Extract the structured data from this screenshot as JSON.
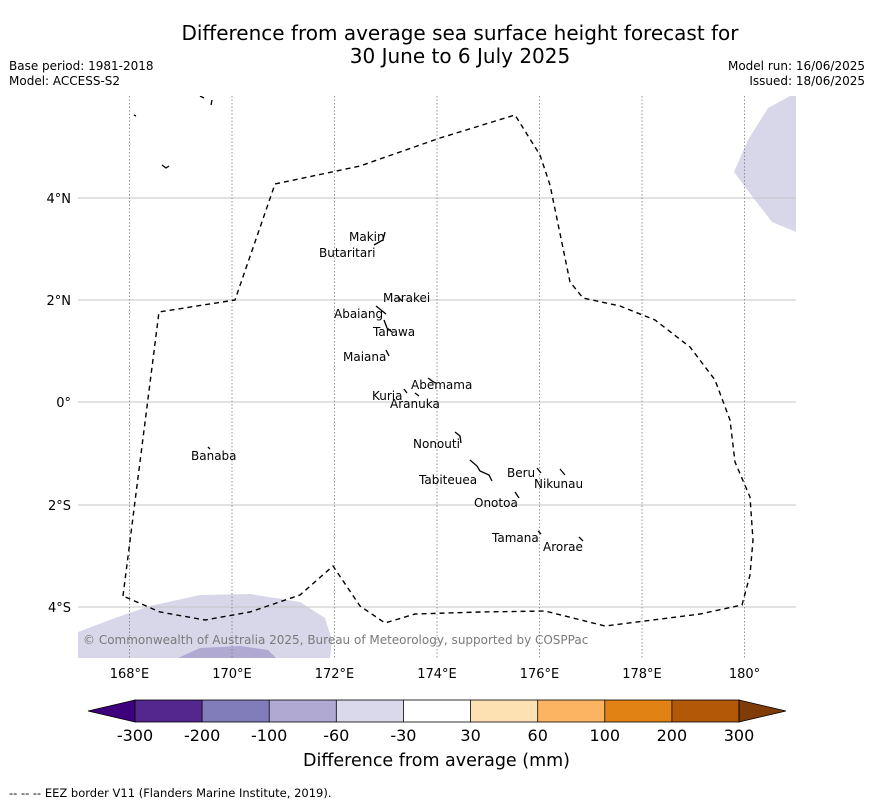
{
  "title": {
    "line1": "Difference from average sea surface height forecast for",
    "line2": "30 June to 6 July 2025"
  },
  "meta": {
    "base_period": "Base period: 1981-2018",
    "model": "Model: ACCESS-S2",
    "model_run": "Model run: 16/06/2025",
    "issued": "Issued: 18/06/2025"
  },
  "map": {
    "lon_labels": [
      "168°E",
      "170°E",
      "172°E",
      "174°E",
      "176°E",
      "178°E",
      "180°"
    ],
    "lat_labels": [
      "4°N",
      "2°N",
      "0°",
      "2°S",
      "4°S"
    ],
    "copyright": "© Commonwealth of Australia 2025, Bureau of Meteorology, supported by COSPPac",
    "places": [
      {
        "name": "Makin",
        "lon": 172.9,
        "lat": 3.2
      },
      {
        "name": "Butaritari",
        "lon": 172.8,
        "lat": 3.05
      },
      {
        "name": "Marakei",
        "lon": 173.3,
        "lat": 2.0
      },
      {
        "name": "Abaiang",
        "lon": 172.9,
        "lat": 1.8
      },
      {
        "name": "Tarawa",
        "lon": 173.0,
        "lat": 1.4
      },
      {
        "name": "Maiana",
        "lon": 173.0,
        "lat": 0.95
      },
      {
        "name": "Abemama",
        "lon": 173.85,
        "lat": 0.4
      },
      {
        "name": "Kuria",
        "lon": 173.4,
        "lat": 0.22
      },
      {
        "name": "Aranuka",
        "lon": 173.6,
        "lat": 0.16
      },
      {
        "name": "Nonouti",
        "lon": 174.45,
        "lat": -0.65
      },
      {
        "name": "Banaba",
        "lon": 169.53,
        "lat": -0.87
      },
      {
        "name": "Beru",
        "lon": 176.0,
        "lat": -1.33
      },
      {
        "name": "Nikunau",
        "lon": 176.45,
        "lat": -1.36
      },
      {
        "name": "Tabiteuea",
        "lon": 174.8,
        "lat": -1.3
      },
      {
        "name": "Onotoa",
        "lon": 175.55,
        "lat": -1.85
      },
      {
        "name": "Tamana",
        "lon": 175.97,
        "lat": -2.5
      },
      {
        "name": "Arorae",
        "lon": 176.82,
        "lat": -2.65
      }
    ]
  },
  "colorbar": {
    "label": "Difference from average (mm)",
    "ticks": [
      "-300",
      "-200",
      "-100",
      "-60",
      "-30",
      "30",
      "60",
      "100",
      "200",
      "300"
    ],
    "colors": [
      "#3f007d",
      "#54278f",
      "#807dba",
      "#b0aad2",
      "#d9d9eb",
      "#ffffff",
      "#fee1b2",
      "#fdb462",
      "#e08214",
      "#b35806",
      "#7f3b08"
    ]
  },
  "footer": "--  --  -- EEZ border V11 (Flanders Marine Institute, 2019)."
}
